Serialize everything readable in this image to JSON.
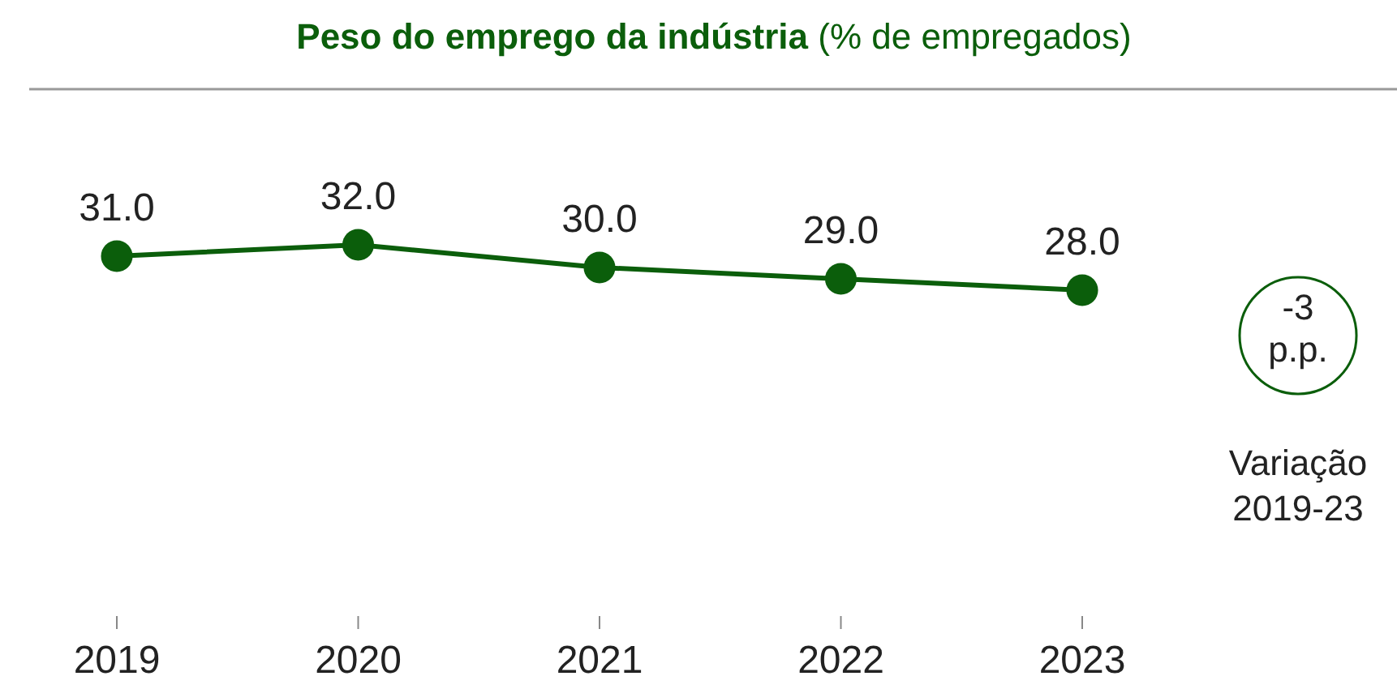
{
  "chart_data": {
    "type": "line",
    "title": "Peso do emprego da indústria",
    "subtitle": "(% de empregados)",
    "categories": [
      "2019",
      "2020",
      "2021",
      "2022",
      "2023"
    ],
    "series": [
      {
        "color": "#0b5e0b",
        "values": [
          31.0,
          32.0,
          30.0,
          29.0,
          28.0
        ],
        "value_labels": [
          "31.0",
          "32.0",
          "30.0",
          "29.0",
          "28.0"
        ]
      }
    ],
    "marker": "circle",
    "line_style": "solid",
    "annotations": [
      "-3 p.p.",
      "Variação 2019-23"
    ]
  }
}
